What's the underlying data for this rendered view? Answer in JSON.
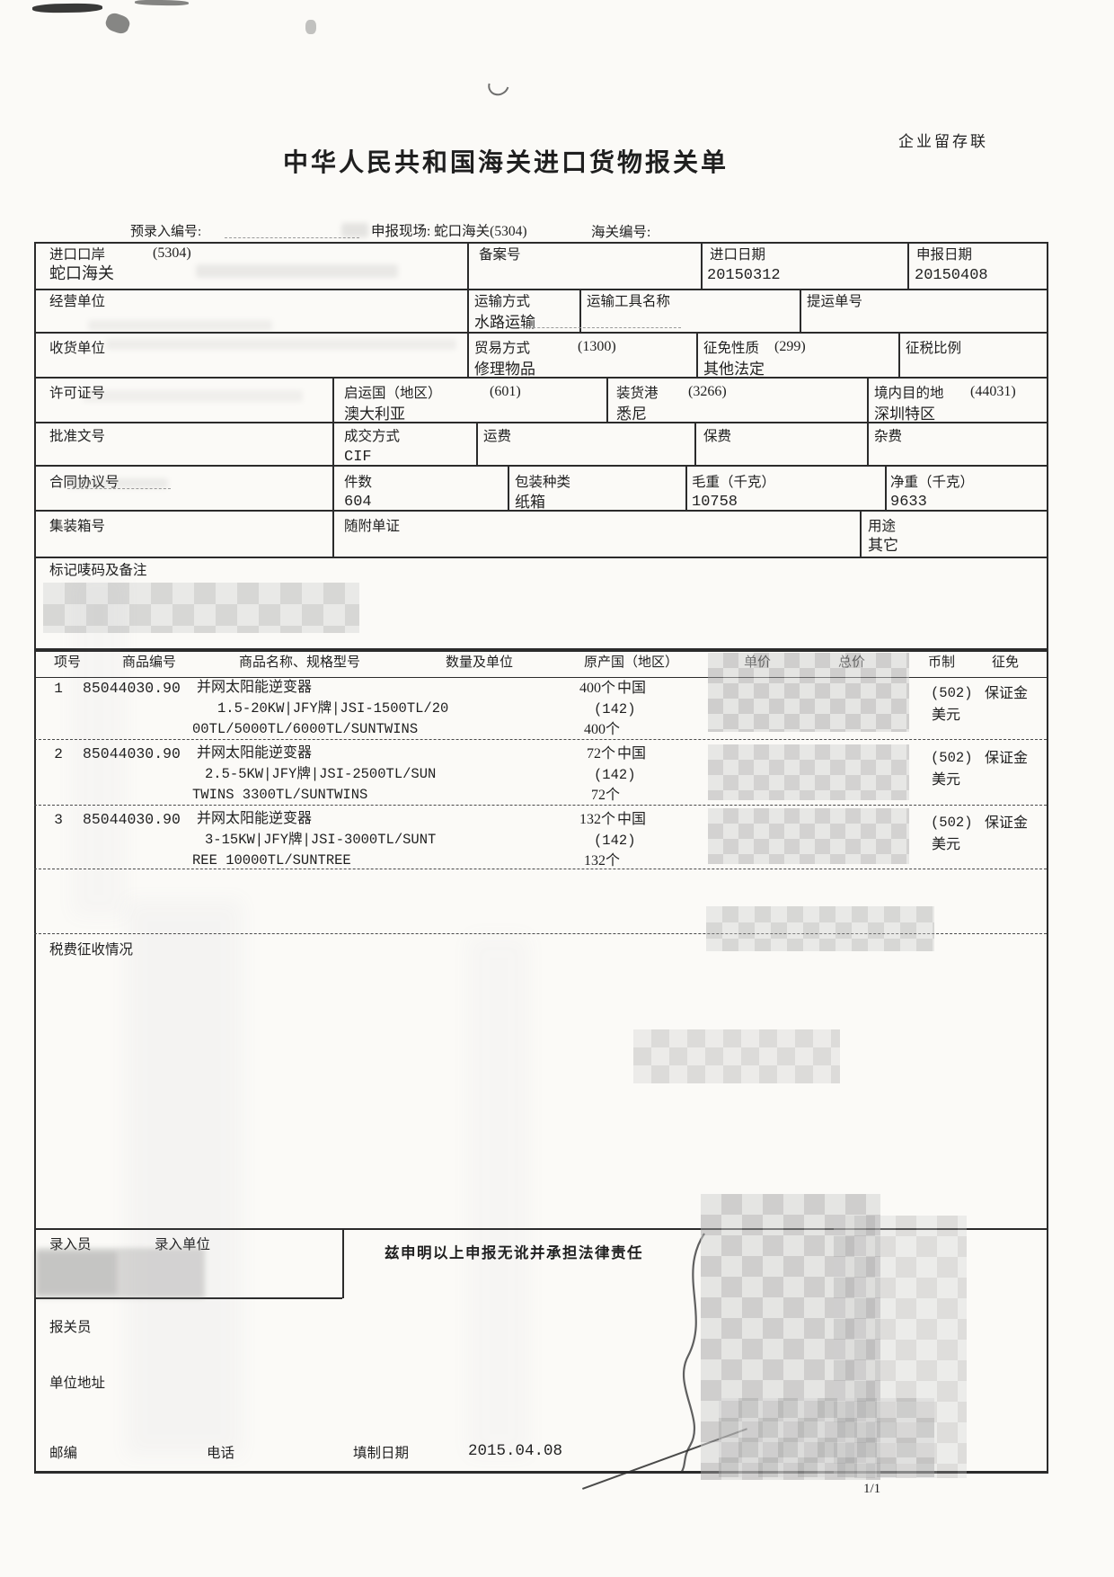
{
  "colors": {
    "paper": "#fbfaf7",
    "ink": "#1f1f1f",
    "line": "#2b2b2b"
  },
  "header": {
    "copy_label": "企业留存联",
    "title": "中华人民共和国海关进口货物报关单",
    "preentry_label": "预录入编号:",
    "declare_site": "申报现场: 蛇口海关(5304)",
    "customs_no_label": "海关编号:"
  },
  "fields": {
    "port": {
      "label": "进口口岸",
      "code": "(5304)",
      "value": "蛇口海关"
    },
    "record": {
      "label": "备案号",
      "value": ""
    },
    "import_date": {
      "label": "进口日期",
      "value": "20150312"
    },
    "declare_date": {
      "label": "申报日期",
      "value": "20150408"
    },
    "operator": {
      "label": "经营单位",
      "value": ""
    },
    "transport": {
      "label": "运输方式",
      "value": "水路运输"
    },
    "vessel": {
      "label": "运输工具名称",
      "value": ""
    },
    "bill": {
      "label": "提运单号",
      "value": ""
    },
    "consignee": {
      "label": "收货单位",
      "value": ""
    },
    "trade": {
      "label": "贸易方式",
      "code": "(1300)",
      "value": "修理物品"
    },
    "levy_nature": {
      "label": "征免性质",
      "code": "(299)",
      "value": "其他法定"
    },
    "tax_ratio": {
      "label": "征税比例",
      "value": ""
    },
    "license": {
      "label": "许可证号",
      "value": ""
    },
    "departure": {
      "label": "启运国（地区）",
      "code": "(601)",
      "value": "澳大利亚"
    },
    "load_port": {
      "label": "装货港",
      "code": "(3266)",
      "value": "悉尼"
    },
    "destination": {
      "label": "境内目的地",
      "code": "(44031)",
      "value": "深圳特区"
    },
    "approval": {
      "label": "批准文号",
      "value": ""
    },
    "terms": {
      "label": "成交方式",
      "value": "CIF"
    },
    "freight": {
      "label": "运费",
      "value": ""
    },
    "insurance": {
      "label": "保费",
      "value": ""
    },
    "misc": {
      "label": "杂费",
      "value": ""
    },
    "contract": {
      "label": "合同协议号",
      "value": ""
    },
    "packages": {
      "label": "件数",
      "value": "604"
    },
    "pack_type": {
      "label": "包装种类",
      "value": "纸箱"
    },
    "gross": {
      "label": "毛重（千克）",
      "value": "10758"
    },
    "net": {
      "label": "净重（千克）",
      "value": "9633"
    },
    "container": {
      "label": "集装箱号",
      "value": ""
    },
    "documents": {
      "label": "随附单证",
      "value": ""
    },
    "usage": {
      "label": "用途",
      "value": "其它"
    },
    "marks": {
      "label": "标记唛码及备注"
    }
  },
  "items": {
    "headers": {
      "no": "项号",
      "code": "商品编号",
      "name": "商品名称、规格型号",
      "qty": "数量及单位",
      "origin": "原产国（地区）",
      "price": "单价",
      "total": "总价",
      "currency": "币制",
      "levy": "征免"
    },
    "rows": [
      {
        "no": "1",
        "code": "85044030.90",
        "name1": "并网太阳能逆变器",
        "name2": "1.5-20KW|JFY牌|JSI-1500TL/20",
        "name3": "00TL/5000TL/6000TL/SUNTWINS",
        "qty1": "400个",
        "origin": "中国",
        "origin_code": "(142)",
        "qty2": "400个",
        "currency_code": "(502)",
        "currency": "美元",
        "levy": "保证金"
      },
      {
        "no": "2",
        "code": "85044030.90",
        "name1": "并网太阳能逆变器",
        "name2": "2.5-5KW|JFY牌|JSI-2500TL/SUN",
        "name3": "TWINS 3300TL/SUNTWINS",
        "qty1": "72个",
        "origin": "中国",
        "origin_code": "(142)",
        "qty2": "72个",
        "currency_code": "(502)",
        "currency": "美元",
        "levy": "保证金"
      },
      {
        "no": "3",
        "code": "85044030.90",
        "name1": "并网太阳能逆变器",
        "name2": "3-15KW|JFY牌|JSI-3000TL/SUNT",
        "name3": "REE 10000TL/SUNTREE",
        "qty1": "132个",
        "origin": "中国",
        "origin_code": "(142)",
        "qty2": "132个",
        "currency_code": "(502)",
        "currency": "美元",
        "levy": "保证金"
      }
    ]
  },
  "tax_section": {
    "label": "税费征收情况"
  },
  "footer": {
    "entry_clerk": "录入员",
    "entry_unit": "录入单位",
    "declaration": "兹申明以上申报无讹并承担法律责任",
    "broker": "报关员",
    "address": "单位地址",
    "zip": "邮编",
    "tel": "电话",
    "fill_date_label": "填制日期",
    "fill_date": "2015.04.08",
    "page": "1/1"
  }
}
